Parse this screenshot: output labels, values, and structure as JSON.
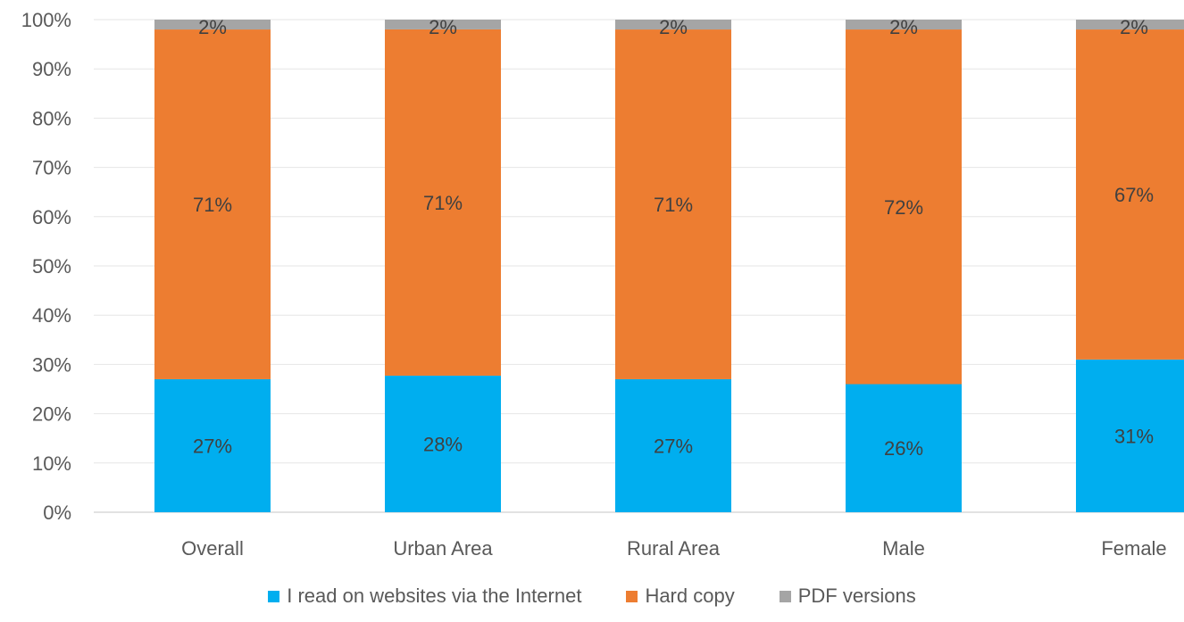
{
  "chart_data": {
    "type": "bar",
    "stacked": true,
    "categories": [
      "Overall",
      "Urban Area",
      "Rural Area",
      "Male",
      "Female"
    ],
    "series": [
      {
        "name": "I read on websites via the Internet",
        "color": "#00AEEF",
        "values": [
          27,
          28,
          27,
          26,
          31
        ],
        "labels": [
          "27%",
          "28%",
          "27%",
          "26%",
          "31%"
        ]
      },
      {
        "name": "Hard copy",
        "color": "#ED7D31",
        "values": [
          71,
          71,
          71,
          72,
          67
        ],
        "labels": [
          "71%",
          "71%",
          "71%",
          "72%",
          "67%"
        ]
      },
      {
        "name": "PDF versions",
        "color": "#A5A5A5",
        "values": [
          2,
          2,
          2,
          2,
          2
        ],
        "labels": [
          "2%",
          "2%",
          "2%",
          "2%",
          "2%"
        ]
      }
    ],
    "ylim": [
      0,
      100
    ],
    "yticks": [
      "0%",
      "10%",
      "20%",
      "30%",
      "40%",
      "50%",
      "60%",
      "70%",
      "80%",
      "90%",
      "100%"
    ],
    "grid": true,
    "legend_position": "bottom"
  }
}
